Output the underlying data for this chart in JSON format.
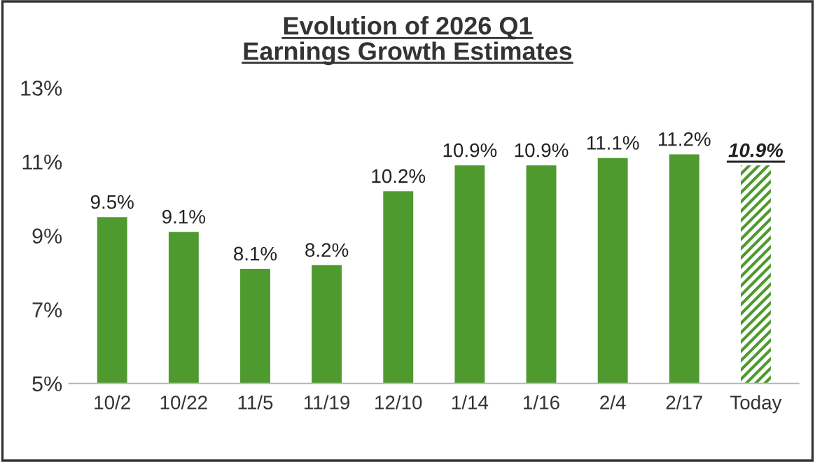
{
  "chart_data": {
    "type": "bar",
    "title": "Evolution of 2026 Q1\nEarnings Growth Estimates",
    "categories": [
      "10/2",
      "10/22",
      "11/5",
      "11/19",
      "12/10",
      "1/14",
      "1/16",
      "2/4",
      "2/17",
      "Today"
    ],
    "values": [
      9.5,
      9.1,
      8.1,
      8.2,
      10.2,
      10.9,
      10.9,
      11.1,
      11.2,
      10.9
    ],
    "value_labels": [
      "9.5%",
      "9.1%",
      "8.1%",
      "8.2%",
      "10.2%",
      "10.9%",
      "10.9%",
      "11.1%",
      "11.2%",
      "10.9%"
    ],
    "color": "#4f9a2f",
    "ylim": [
      5,
      13
    ],
    "yticks": [
      {
        "value": 5,
        "label": "5%"
      },
      {
        "value": 7,
        "label": "7%"
      },
      {
        "value": 9,
        "label": "9%"
      },
      {
        "value": 11,
        "label": "11%"
      },
      {
        "value": 13,
        "label": "13%"
      }
    ],
    "grid": false
  }
}
